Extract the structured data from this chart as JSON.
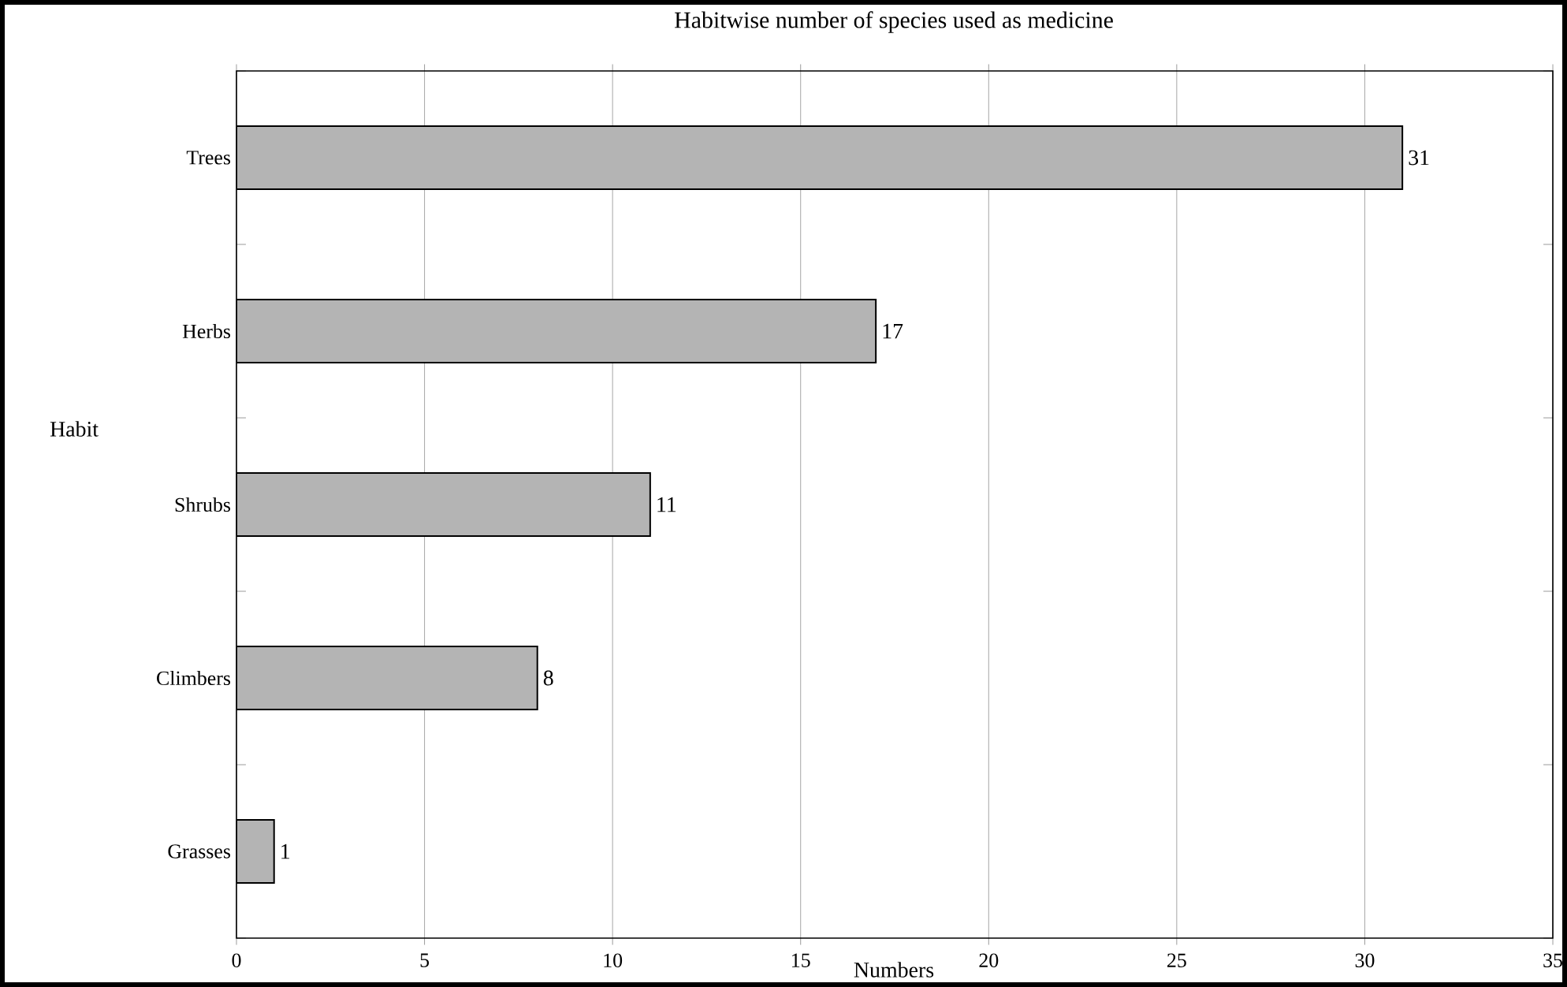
{
  "chart_data": {
    "type": "bar",
    "orientation": "horizontal",
    "title": "Habitwise number of species used as medicine",
    "xlabel": "Numbers",
    "ylabel": "Habit",
    "categories": [
      "Trees",
      "Herbs",
      "Shrubs",
      "Climbers",
      "Grasses"
    ],
    "values": [
      31,
      17,
      11,
      8,
      1
    ],
    "color": "#b4b4b4",
    "xlim": [
      0,
      35
    ],
    "xticks": [
      0,
      5,
      10,
      15,
      20,
      25,
      30,
      35
    ],
    "grid": "x",
    "data_labels": true
  }
}
